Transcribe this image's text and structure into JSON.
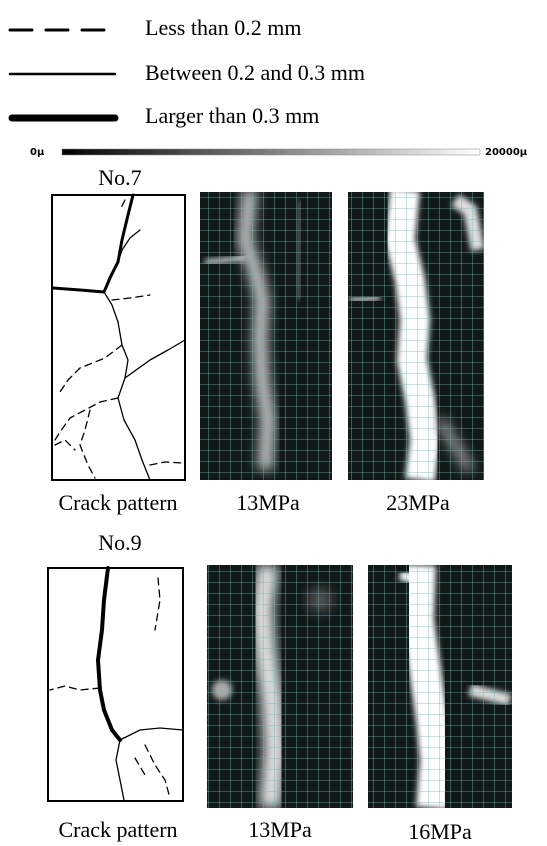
{
  "legend": {
    "items": [
      {
        "label": "Less than 0.2 mm"
      },
      {
        "label": "Between 0.2 and 0.3 mm"
      },
      {
        "label": "Larger than 0.3 mm"
      }
    ]
  },
  "scale_bar": {
    "min_label": "0µ",
    "max_label": "20000µ"
  },
  "specimens": [
    {
      "title": "No.7",
      "captions": [
        "Crack pattern",
        "13MPa",
        "23MPa"
      ]
    },
    {
      "title": "No.9",
      "captions": [
        "Crack pattern",
        "13MPa",
        "16MPa"
      ]
    }
  ]
}
